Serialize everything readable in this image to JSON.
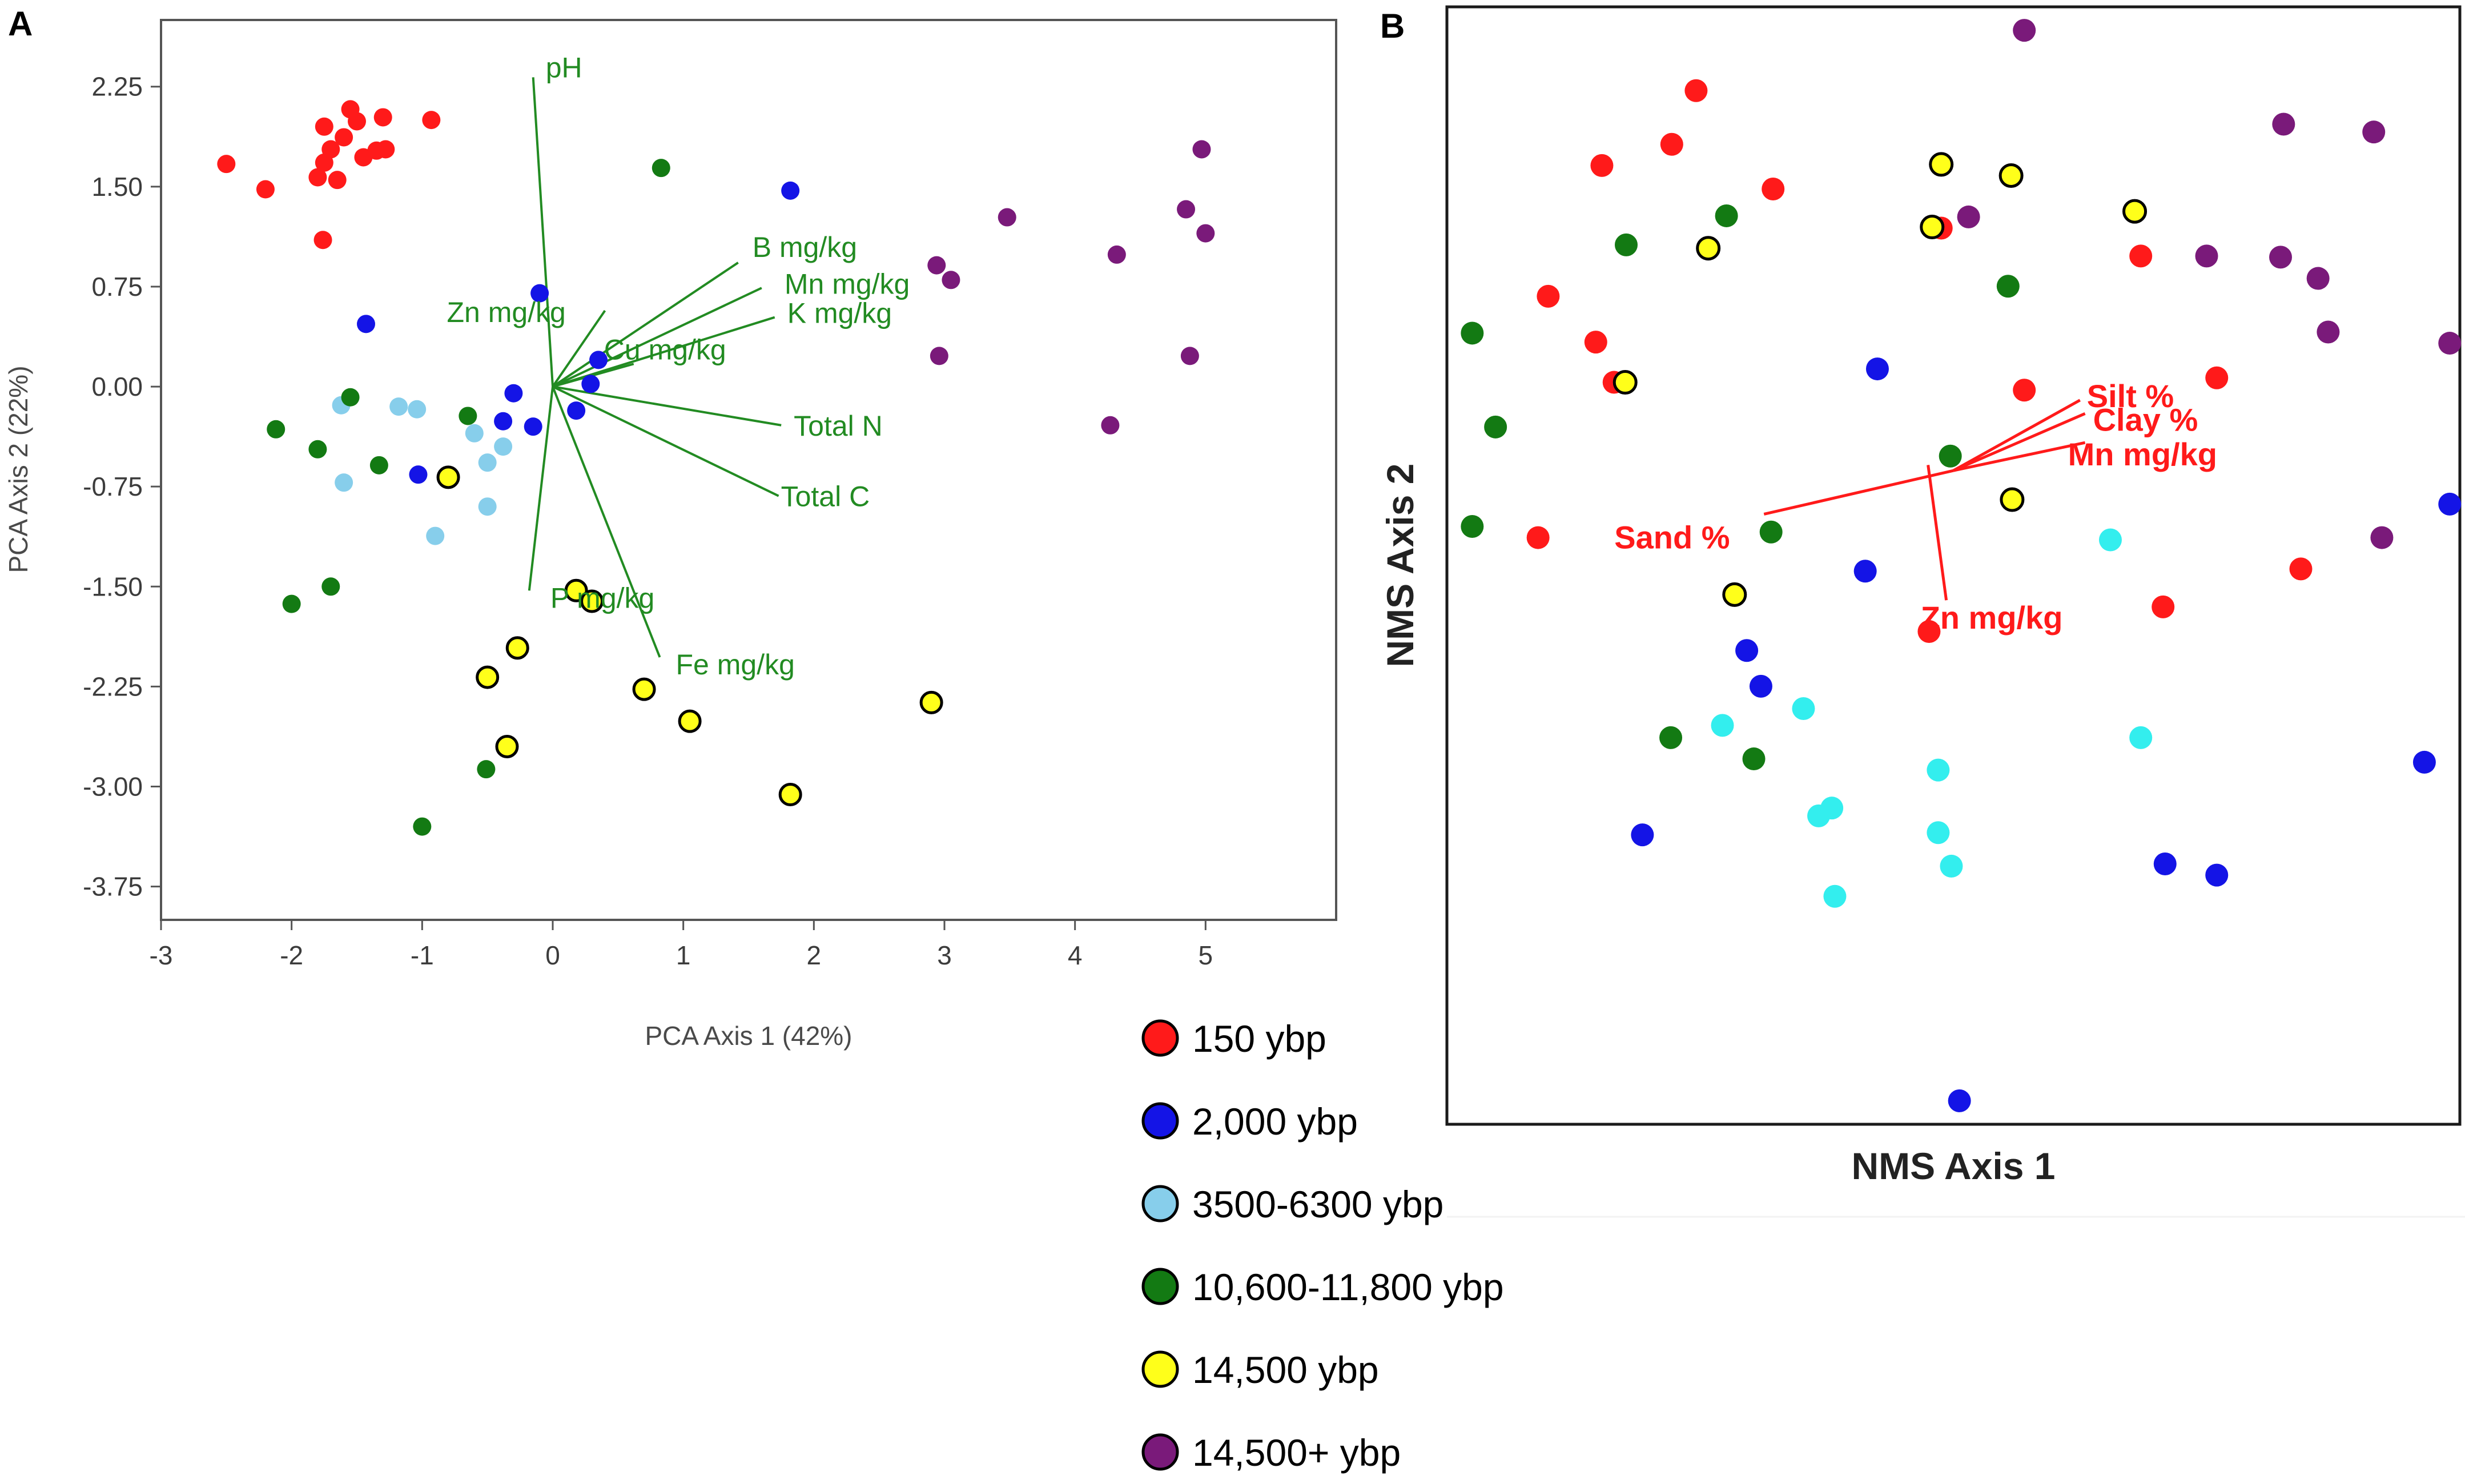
{
  "colors": {
    "150 ybp": "#ff1a1a",
    "2,000 ybp": "#1414e6",
    "3500-6300 ybp": "#87ceeb",
    "3500-6300 ybp_nms": "#33eeee",
    "10,600-11,800 ybp": "#137a13",
    "14,500 ybp": "#ffff1a",
    "14,500+ ybp": "#7a1a7a",
    "pca_vector": "#228b22",
    "nms_vector": "#ff1a1a"
  },
  "legend": {
    "items": [
      {
        "label": "150 ybp",
        "group": "150 ybp"
      },
      {
        "label": "2,000 ybp",
        "group": "2,000 ybp"
      },
      {
        "label": "3500-6300 ybp",
        "group": "3500-6300 ybp"
      },
      {
        "label": "10,600-11,800 ybp",
        "group": "10,600-11,800 ybp"
      },
      {
        "label": "14,500 ybp",
        "group": "14,500 ybp"
      },
      {
        "label": "14,500+ ybp",
        "group": "14,500+ ybp"
      }
    ]
  },
  "chart_data": [
    {
      "panel": "A",
      "type": "scatter",
      "xlabel": "PCA Axis 1 (42%)",
      "ylabel": "PCA Axis 2 (22%)",
      "xlim": [
        -3,
        6
      ],
      "ylim": [
        -4,
        2.75
      ],
      "xticks": [
        -3,
        -2,
        -1,
        0,
        1,
        2,
        3,
        4,
        5
      ],
      "xtick_labels": [
        "-3",
        "-2",
        "-1",
        "0",
        "1",
        "2",
        "3",
        "4",
        "5"
      ],
      "yticks": [
        2.25,
        1.5,
        0.75,
        0,
        -0.75,
        -1.5,
        -2.25,
        -3,
        -3.75
      ],
      "ytick_labels": [
        "2.25",
        "1.50",
        "0.75",
        "0.00",
        "-0.75",
        "-1.50",
        "-2.25",
        "-3.00",
        "-3.75"
      ],
      "series": [
        {
          "name": "150 ybp",
          "points": [
            [
              -2.5,
              1.67
            ],
            [
              -2.2,
              1.48
            ],
            [
              -1.8,
              1.57
            ],
            [
              -1.75,
              1.68
            ],
            [
              -1.7,
              1.78
            ],
            [
              -1.75,
              1.95
            ],
            [
              -1.65,
              1.55
            ],
            [
              -1.6,
              1.87
            ],
            [
              -1.55,
              2.08
            ],
            [
              -1.5,
              1.99
            ],
            [
              -1.45,
              1.72
            ],
            [
              -1.35,
              1.77
            ],
            [
              -1.28,
              1.78
            ],
            [
              -1.3,
              2.02
            ],
            [
              -0.93,
              2.0
            ],
            [
              -1.76,
              1.1
            ]
          ]
        },
        {
          "name": "2,000 ybp",
          "points": [
            [
              1.82,
              1.47
            ],
            [
              -0.1,
              0.7
            ],
            [
              -1.43,
              0.47
            ],
            [
              0.35,
              0.2
            ],
            [
              0.29,
              0.02
            ],
            [
              0.18,
              -0.18
            ],
            [
              -0.3,
              -0.05
            ],
            [
              -0.38,
              -0.26
            ],
            [
              -0.15,
              -0.3
            ],
            [
              -1.03,
              -0.66
            ]
          ]
        },
        {
          "name": "3500-6300 ybp",
          "points": [
            [
              -1.62,
              -0.14
            ],
            [
              -1.18,
              -0.15
            ],
            [
              -1.04,
              -0.17
            ],
            [
              -0.6,
              -0.35
            ],
            [
              -0.5,
              -0.57
            ],
            [
              -0.38,
              -0.45
            ],
            [
              -0.5,
              -0.9
            ],
            [
              -0.9,
              -1.12
            ],
            [
              -1.6,
              -0.72
            ]
          ]
        },
        {
          "name": "10,600-11,800 ybp",
          "points": [
            [
              0.83,
              1.64
            ],
            [
              -1.55,
              -0.08
            ],
            [
              -2.12,
              -0.32
            ],
            [
              -1.8,
              -0.47
            ],
            [
              -1.33,
              -0.59
            ],
            [
              -0.65,
              -0.22
            ],
            [
              -1.7,
              -1.5
            ],
            [
              -2.0,
              -1.63
            ],
            [
              -0.51,
              -2.87
            ],
            [
              -1.0,
              -3.3
            ]
          ]
        },
        {
          "name": "14,500 ybp",
          "points": [
            [
              -0.8,
              -0.68
            ],
            [
              0.18,
              -1.53
            ],
            [
              0.3,
              -1.61
            ],
            [
              -0.27,
              -1.96
            ],
            [
              -0.5,
              -2.18
            ],
            [
              -0.35,
              -2.7
            ],
            [
              0.7,
              -2.27
            ],
            [
              1.05,
              -2.51
            ],
            [
              2.9,
              -2.37
            ],
            [
              1.82,
              -3.06
            ]
          ]
        },
        {
          "name": "14,500+ ybp",
          "points": [
            [
              4.97,
              1.78
            ],
            [
              4.85,
              1.33
            ],
            [
              5.0,
              1.15
            ],
            [
              3.48,
              1.27
            ],
            [
              2.94,
              0.91
            ],
            [
              3.05,
              0.8
            ],
            [
              4.32,
              0.99
            ],
            [
              2.96,
              0.23
            ],
            [
              4.88,
              0.23
            ],
            [
              4.27,
              -0.29
            ]
          ]
        }
      ],
      "vectors": [
        {
          "label": "pH",
          "end": [
            -0.15,
            2.32
          ]
        },
        {
          "label": "B mg/kg",
          "end": [
            1.42,
            0.93
          ]
        },
        {
          "label": "Mn mg/kg",
          "end": [
            1.6,
            0.74
          ]
        },
        {
          "label": "K mg/kg",
          "end": [
            1.7,
            0.52
          ]
        },
        {
          "label": "Cu mg/kg",
          "end": [
            0.62,
            0.17
          ]
        },
        {
          "label": "Zn mg/kg",
          "end": [
            0.4,
            0.57
          ]
        },
        {
          "label": "Total N",
          "end": [
            1.75,
            -0.29
          ]
        },
        {
          "label": "Total C",
          "end": [
            1.73,
            -0.82
          ]
        },
        {
          "label": "P mg/kg",
          "end": [
            -0.18,
            -1.53
          ]
        },
        {
          "label": "Fe mg/kg",
          "end": [
            0.82,
            -2.03
          ]
        }
      ]
    },
    {
      "panel": "B",
      "type": "scatter",
      "xlabel": "NMS Axis 1",
      "ylabel": "NMS Axis 2",
      "xlim": [
        0,
        100
      ],
      "ylim": [
        0,
        100
      ],
      "xticks": [],
      "yticks": [],
      "series": [
        {
          "name": "150 ybp",
          "points": [
            [
              24.6,
              92.5
            ],
            [
              22.2,
              87.7
            ],
            [
              15.3,
              85.8
            ],
            [
              32.2,
              83.7
            ],
            [
              48.8,
              80.2
            ],
            [
              68.5,
              77.7
            ],
            [
              10.0,
              74.1
            ],
            [
              14.7,
              70.0
            ],
            [
              16.5,
              66.4
            ],
            [
              57.0,
              65.7
            ],
            [
              76.0,
              66.8
            ],
            [
              9.0,
              52.5
            ],
            [
              84.3,
              49.7
            ],
            [
              70.7,
              46.3
            ],
            [
              47.6,
              44.1
            ]
          ]
        },
        {
          "name": "2,000 ybp",
          "points": [
            [
              42.5,
              67.6
            ],
            [
              99.0,
              55.5
            ],
            [
              41.3,
              49.5
            ],
            [
              29.6,
              42.4
            ],
            [
              31.0,
              39.2
            ],
            [
              19.3,
              25.9
            ],
            [
              70.9,
              23.3
            ],
            [
              96.5,
              32.4
            ],
            [
              76.0,
              22.3
            ],
            [
              50.6,
              2.1
            ]
          ]
        },
        {
          "name": "3500-6300 ybp",
          "points": [
            [
              65.5,
              52.3
            ],
            [
              27.2,
              35.7
            ],
            [
              35.2,
              37.2
            ],
            [
              68.5,
              34.6
            ],
            [
              48.5,
              31.7
            ],
            [
              36.7,
              27.6
            ],
            [
              38.0,
              28.3
            ],
            [
              48.5,
              26.1
            ],
            [
              49.8,
              23.1
            ],
            [
              38.3,
              20.4
            ]
          ]
        },
        {
          "name": "10,600-11,800 ybp",
          "points": [
            [
              27.6,
              81.3
            ],
            [
              17.7,
              78.7
            ],
            [
              55.4,
              75.0
            ],
            [
              2.5,
              70.8
            ],
            [
              4.8,
              62.4
            ],
            [
              49.7,
              59.8
            ],
            [
              2.5,
              53.5
            ],
            [
              32.0,
              53.0
            ],
            [
              22.1,
              34.6
            ],
            [
              30.3,
              32.7
            ]
          ]
        },
        {
          "name": "14,500 ybp",
          "points": [
            [
              48.8,
              85.9
            ],
            [
              55.7,
              84.9
            ],
            [
              67.9,
              81.7
            ],
            [
              47.9,
              80.3
            ],
            [
              25.8,
              78.4
            ],
            [
              17.6,
              66.4
            ],
            [
              55.8,
              55.9
            ],
            [
              28.4,
              47.4
            ]
          ]
        },
        {
          "name": "14,500+ ybp",
          "points": [
            [
              57.0,
              97.9
            ],
            [
              82.6,
              89.5
            ],
            [
              91.5,
              88.8
            ],
            [
              51.5,
              81.2
            ],
            [
              75.0,
              77.7
            ],
            [
              82.3,
              77.6
            ],
            [
              86.0,
              75.7
            ],
            [
              87.0,
              70.9
            ],
            [
              99.0,
              69.9
            ],
            [
              92.3,
              52.5
            ]
          ]
        }
      ],
      "vectors": [
        {
          "label": "Silt %",
          "start": [
            50.0,
            58.5
          ],
          "end": [
            62.5,
            64.8
          ]
        },
        {
          "label": "Clay %",
          "start": [
            50.0,
            58.5
          ],
          "end": [
            63.0,
            63.6
          ]
        },
        {
          "label": "Mn mg/kg",
          "start": [
            50.0,
            58.5
          ],
          "end": [
            63.0,
            61.0
          ]
        },
        {
          "label": "Sand %",
          "start": [
            50.0,
            58.5
          ],
          "end": [
            31.3,
            54.6
          ]
        },
        {
          "label": "Zn mg/kg",
          "start": [
            47.5,
            59.0
          ],
          "end": [
            49.3,
            46.9
          ]
        }
      ]
    }
  ]
}
